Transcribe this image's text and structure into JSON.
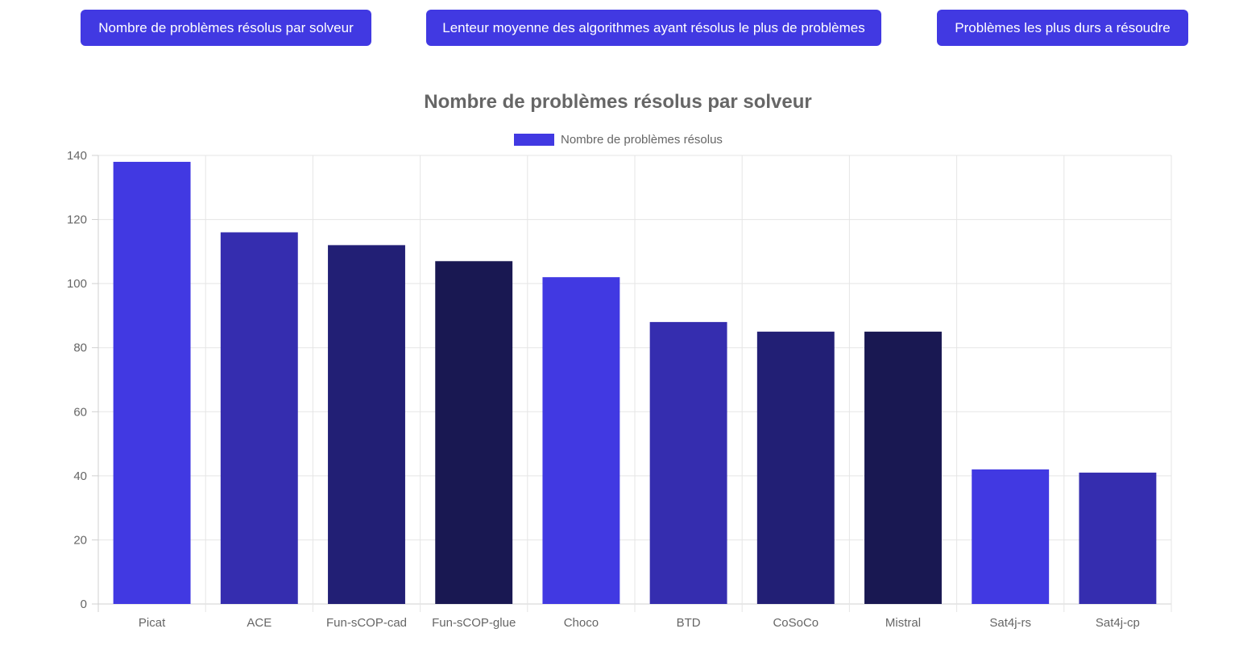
{
  "nav": {
    "buttons": [
      {
        "label": "Nombre de problèmes résolus par solveur"
      },
      {
        "label": "Lenteur moyenne des algorithmes ayant résolus le plus de problèmes"
      },
      {
        "label": "Problèmes les plus durs a résoudre"
      }
    ],
    "button_color": "#4139e2"
  },
  "chart_data": {
    "type": "bar",
    "title": "Nombre de problèmes résolus par solveur",
    "legend": {
      "label": "Nombre de problèmes résolus",
      "position": "top",
      "swatch_color": "#4139e2"
    },
    "categories": [
      "Picat",
      "ACE",
      "Fun-sCOP-cad",
      "Fun-sCOP-glue",
      "Choco",
      "BTD",
      "CoSoCo",
      "Mistral",
      "Sat4j-rs",
      "Sat4j-cp"
    ],
    "series": [
      {
        "name": "Nombre de problèmes résolus",
        "values": [
          138,
          116,
          112,
          107,
          102,
          88,
          85,
          85,
          42,
          41
        ]
      }
    ],
    "bar_colors": [
      "#4139e2",
      "#352daf",
      "#221f75",
      "#191852",
      "#4139e2",
      "#352daf",
      "#221f75",
      "#191852",
      "#4139e2",
      "#352daf"
    ],
    "ylim": [
      0,
      140
    ],
    "yticks": [
      "0",
      "20",
      "40",
      "60",
      "80",
      "100",
      "120",
      "140"
    ],
    "grid": true,
    "xlabel": "",
    "ylabel": ""
  }
}
